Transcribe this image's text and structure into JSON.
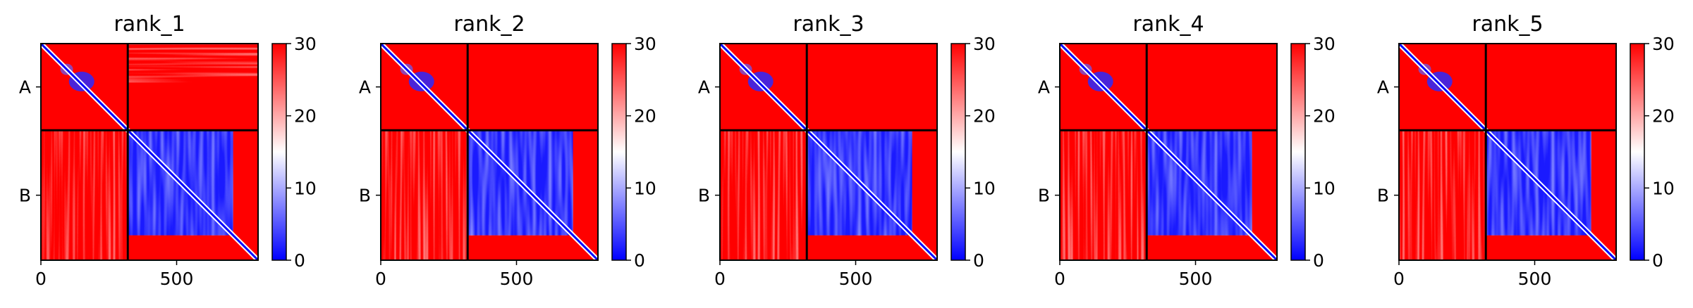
{
  "chart_data": [
    {
      "type": "heatmap",
      "title": "rank_1",
      "x_ticks": [
        0,
        500
      ],
      "y_tick_labels": [
        "A",
        "B"
      ],
      "chain_boundary": 320,
      "extent": [
        0,
        800
      ],
      "colorbar": {
        "ticks": [
          0,
          10,
          20,
          30
        ],
        "range": [
          0,
          30
        ],
        "colors": [
          "#0000ff",
          "#ffffff",
          "#ff0000"
        ]
      }
    },
    {
      "type": "heatmap",
      "title": "rank_2",
      "x_ticks": [
        0,
        500
      ],
      "y_tick_labels": [
        "A",
        "B"
      ],
      "chain_boundary": 320,
      "extent": [
        0,
        800
      ],
      "colorbar": {
        "ticks": [
          0,
          10,
          20,
          30
        ],
        "range": [
          0,
          30
        ],
        "colors": [
          "#0000ff",
          "#ffffff",
          "#ff0000"
        ]
      }
    },
    {
      "type": "heatmap",
      "title": "rank_3",
      "x_ticks": [
        0,
        500
      ],
      "y_tick_labels": [
        "A",
        "B"
      ],
      "chain_boundary": 320,
      "extent": [
        0,
        800
      ],
      "colorbar": {
        "ticks": [
          0,
          10,
          20,
          30
        ],
        "range": [
          0,
          30
        ],
        "colors": [
          "#0000ff",
          "#ffffff",
          "#ff0000"
        ]
      }
    },
    {
      "type": "heatmap",
      "title": "rank_4",
      "x_ticks": [
        0,
        500
      ],
      "y_tick_labels": [
        "A",
        "B"
      ],
      "chain_boundary": 320,
      "extent": [
        0,
        800
      ],
      "colorbar": {
        "ticks": [
          0,
          10,
          20,
          30
        ],
        "range": [
          0,
          30
        ],
        "colors": [
          "#0000ff",
          "#ffffff",
          "#ff0000"
        ]
      }
    },
    {
      "type": "heatmap",
      "title": "rank_5",
      "x_ticks": [
        0,
        500
      ],
      "y_tick_labels": [
        "A",
        "B"
      ],
      "chain_boundary": 320,
      "extent": [
        0,
        800
      ],
      "colorbar": {
        "ticks": [
          0,
          10,
          20,
          30
        ],
        "range": [
          0,
          30
        ],
        "colors": [
          "#0000ff",
          "#ffffff",
          "#ff0000"
        ]
      }
    }
  ]
}
